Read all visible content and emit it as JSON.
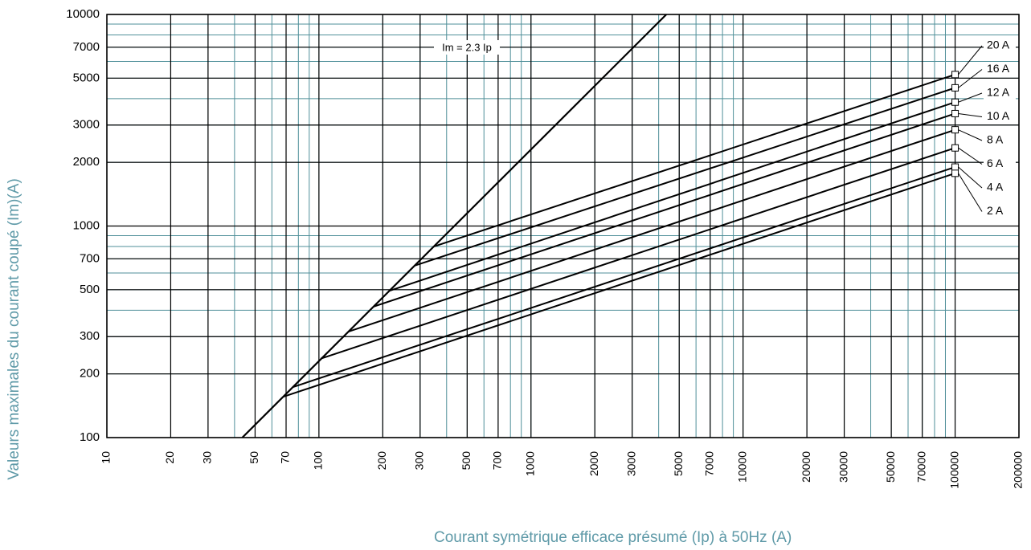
{
  "chart_data": {
    "type": "line",
    "log_x": true,
    "log_y": true,
    "grid": true,
    "x_label": "Courant symétrique efficace présumé (Ip) à 50Hz (A)",
    "y_label": "Valeurs maximales du courant coupé (Im)(A)",
    "xlim": [
      10,
      200000
    ],
    "ylim": [
      100,
      10000
    ],
    "xticks": [
      10,
      20,
      30,
      50,
      70,
      100,
      200,
      300,
      500,
      700,
      1000,
      2000,
      3000,
      5000,
      7000,
      10000,
      20000,
      30000,
      50000,
      70000,
      100000,
      200000
    ],
    "yticks": [
      100,
      200,
      300,
      500,
      700,
      1000,
      2000,
      3000,
      5000,
      7000,
      10000
    ],
    "reference_line": {
      "label": "Im = 2.3 Ip",
      "color": "#000000",
      "x": [
        43.5,
        4348
      ],
      "values": [
        100,
        10000
      ]
    },
    "series": [
      {
        "name": "20 A",
        "color": "#000000",
        "x": [
          348,
          100000
        ],
        "values": [
          800,
          5200
        ]
      },
      {
        "name": "16 A",
        "color": "#000000",
        "x": [
          283,
          100000
        ],
        "values": [
          650,
          4500
        ]
      },
      {
        "name": "12 A",
        "color": "#000000",
        "x": [
          215,
          100000
        ],
        "values": [
          494,
          3850
        ]
      },
      {
        "name": "10 A",
        "color": "#000000",
        "x": [
          181,
          100000
        ],
        "values": [
          416,
          3400
        ]
      },
      {
        "name": "8 A",
        "color": "#000000",
        "x": [
          138,
          100000
        ],
        "values": [
          317,
          2850
        ]
      },
      {
        "name": "6 A",
        "color": "#000000",
        "x": [
          102,
          100000
        ],
        "values": [
          236,
          2340
        ]
      },
      {
        "name": "4 A",
        "color": "#000000",
        "x": [
          75,
          100000
        ],
        "values": [
          173,
          1900
        ]
      },
      {
        "name": "2 A",
        "color": "#000000",
        "x": [
          68,
          100000
        ],
        "values": [
          156,
          1775
        ]
      }
    ]
  }
}
